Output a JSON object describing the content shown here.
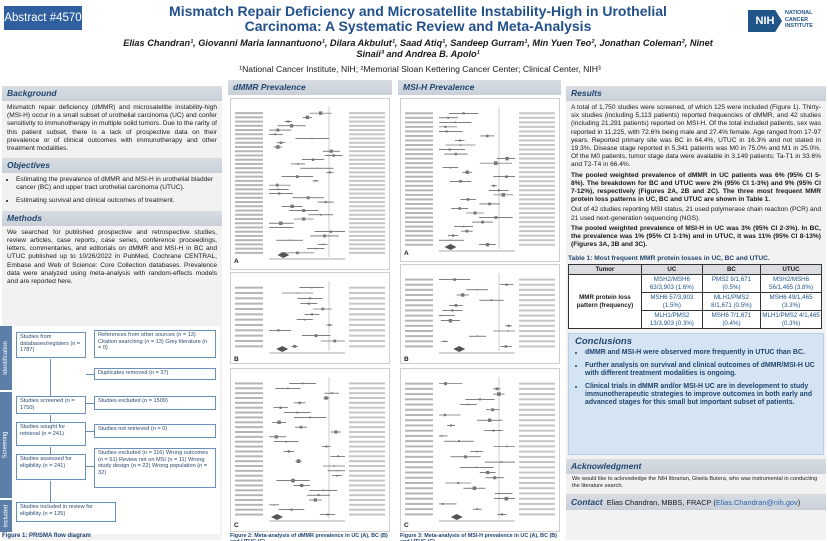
{
  "header": {
    "abstract_tag": "Abstract #4570",
    "title": "Mismatch Repair Deficiency and Microsatellite Instability-High in Urothelial Carcinoma: A Systematic Review and Meta-Analysis",
    "authors": "Elias Chandran¹, Giovanni Maria Iannantuono¹, Dilara Akbulut¹, Saad Atiq¹, Sandeep Gurram¹, Min Yuen Teo², Jonathan Coleman², Ninet Sinaii³ and Andrea B. Apolo¹",
    "affiliations": "¹National Cancer Institute, NIH; ²Memorial Sloan Kettering Cancer Center; Clinical Center, NIH³",
    "logo_badge": "NIH",
    "logo_text": "NATIONAL CANCER INSTITUTE",
    "brand_color": "#2f5f9e"
  },
  "background": {
    "heading": "Background",
    "text": "Mismatch repair deficiency (dMMR) and microsatellite instability-high (MSI-H) occur in a small subset of urothelial carcinoma (UC) and confer sensitivity to immunotherapy in multiple solid tumors. Due to the rarity of this patient subset, there is a lack of prospective data on their prevalence or of clinical outcomes with immunotherapy and other treatment modalities."
  },
  "objectives": {
    "heading": "Objectives",
    "items": [
      "Estimating the prevalence of dMMR and MSI-H in urothelial bladder cancer (BC) and upper tract urothelial carcinoma (UTUC).",
      "Estimating survival and clinical outcomes of treatment."
    ]
  },
  "methods": {
    "heading": "Methods",
    "text": "We searched for published prospective and retrospective studies, review articles, case reports, case series, conference proceedings, letters, commentaries, and editorials on dMMR and MSI-H in BC and UTUC published up to 10/26/2022 in PubMed, Cochrane CENTRAL, Embase and Web of Science: Core Collection databases. Prevalence data were analyzed using meta-analysis with random-effects models and are reported here."
  },
  "flow": {
    "band_identification": "Identification",
    "band_screening": "Screening",
    "band_included": "Included",
    "box_databases": "Studies from databases/registers (n = 1787)",
    "box_other": "References from other sources (n = 13) Citation searching (n = 13) Grey literature (n = 0)",
    "box_duplicates": "Duplicates removed (n = 37)",
    "box_screened": "Studies screened (n = 1750)",
    "box_excluded": "Studies excluded (n = 1509)",
    "box_sought": "Studies sought for retrieval (n = 241)",
    "box_not_retrieved": "Studies not retrieved (n = 0)",
    "box_assessed": "Studies assessed for eligibility (n = 241)",
    "box_excluded2": "Studies excluded (n = 116) Wrong outcomes (n = 51) Review not on MSI (n = 11) Wrong study design (n = 22) Wrong population (n = 32)",
    "box_included": "Studies included in review for eligibility (n = 125)",
    "caption": "Figure 1: PRISMA flow diagram"
  },
  "middle": {
    "dmmr_heading": "dMMR Prevalence",
    "msih_heading": "MSI-H Prevalence",
    "panel_labels": [
      "A",
      "B",
      "C"
    ],
    "caption_left": "Figure 2: Meta-analysis of dMMR prevalence in UC (A), BC (B) and UTUC (C).",
    "caption_right": "Figure 3: Meta-analysis of MSI-H prevalence in UC (A), BC (B) and UTUC (C)."
  },
  "results": {
    "heading": "Results",
    "para1": "A total of 1,750 studies were screened, of which 125 were included (Figure 1). Thirty-six studies (including 5,113 patients) reported frequencies of dMMR, and 42 studies (including 21,291 patients) reported on MSI-H. Of the total included patients, sex was reported in 11,225, with 72.6% being male and 27.4% female. Age ranged from 17-97 years. Reported primary site was BC in 64.4%, UTUC in 16.3% and not stated in 19.3%. Disease stage reported in 5,341 patients was M0 in 75.0% and M1 in 25.0%. Of the M0 patients, tumor stage data were available in 3,149 patients: Ta-T1 in 33.6% and T2-T4 in 66.4%.",
    "para2": "The pooled weighted prevalence of dMMR in UC patients was 6% (95% CI 5-8%). The breakdown for BC and UTUC were 2% (95% CI 1-3%) and 9% (95% CI 7-12%), respectively (Figures 2A, 2B and 2C). The three most frequent MMR protein loss patterns in UC, BC and UTUC are shown in Table 1.",
    "para3": "Out of 42 studies reporting MSI status, 21 used polymerase chain reaction (PCR) and 21 used next-generation sequencing (NGS).",
    "para4": "The pooled weighted prevalence of MSI-H in UC was 3% (95% CI 2-3%). In BC, the prevalence was 1% (95% CI 1-1%) and in UTUC, it was 11% (95% CI 8-13%) (Figures 3A, 3B and 3C)."
  },
  "table": {
    "caption": "Table 1: Most frequent MMR protein losses in UC, BC and UTUC.",
    "headers": [
      "Tumor",
      "UC",
      "BC",
      "UTUC"
    ],
    "row_header": "MMR protein loss pattern (frequency)",
    "rows": [
      [
        "MSH2/MSH6 63/3,903 (1.6%)",
        "PMS2 9/1,671 (0.5%)",
        "MSH2/MSH6 56/1,465 (3.8%)"
      ],
      [
        "MSH6 57/3,903 (1.5%)",
        "MLH1/PMS2 8/1,671 (0.5%)",
        "MSH6 49/1,465 (3.3%)"
      ],
      [
        "MLH1/PMS2 13/3,903 (0.3%)",
        "MSH6 7/1,671 (0.4%)",
        "MLH1/PMS2 4/1,465 (0.3%)"
      ]
    ]
  },
  "conclusions": {
    "heading": "Conclusions",
    "items": [
      "dMMR and MSI-H were observed more frequently in UTUC than BC.",
      "Further analysis on survival and clinical outcomes of dMMR/MSI-H UC with different treatment modalities is ongoing.",
      "Clinical trials in dMMR and/or MSI-H UC are in development to study immunotherapeutic strategies to improve outcomes in both early and advanced stages for this small but important subset of patients."
    ]
  },
  "acknowledgment": {
    "heading": "Acknowledgment",
    "text": "We would like to acknowledge the NIH librarian, Gisela Butera, who was instrumental in conducting the literature search."
  },
  "contact": {
    "label": "Contact",
    "name": "Elias Chandran, MBBS, FRACP",
    "email": "Elias.Chandran@nih.gov"
  }
}
